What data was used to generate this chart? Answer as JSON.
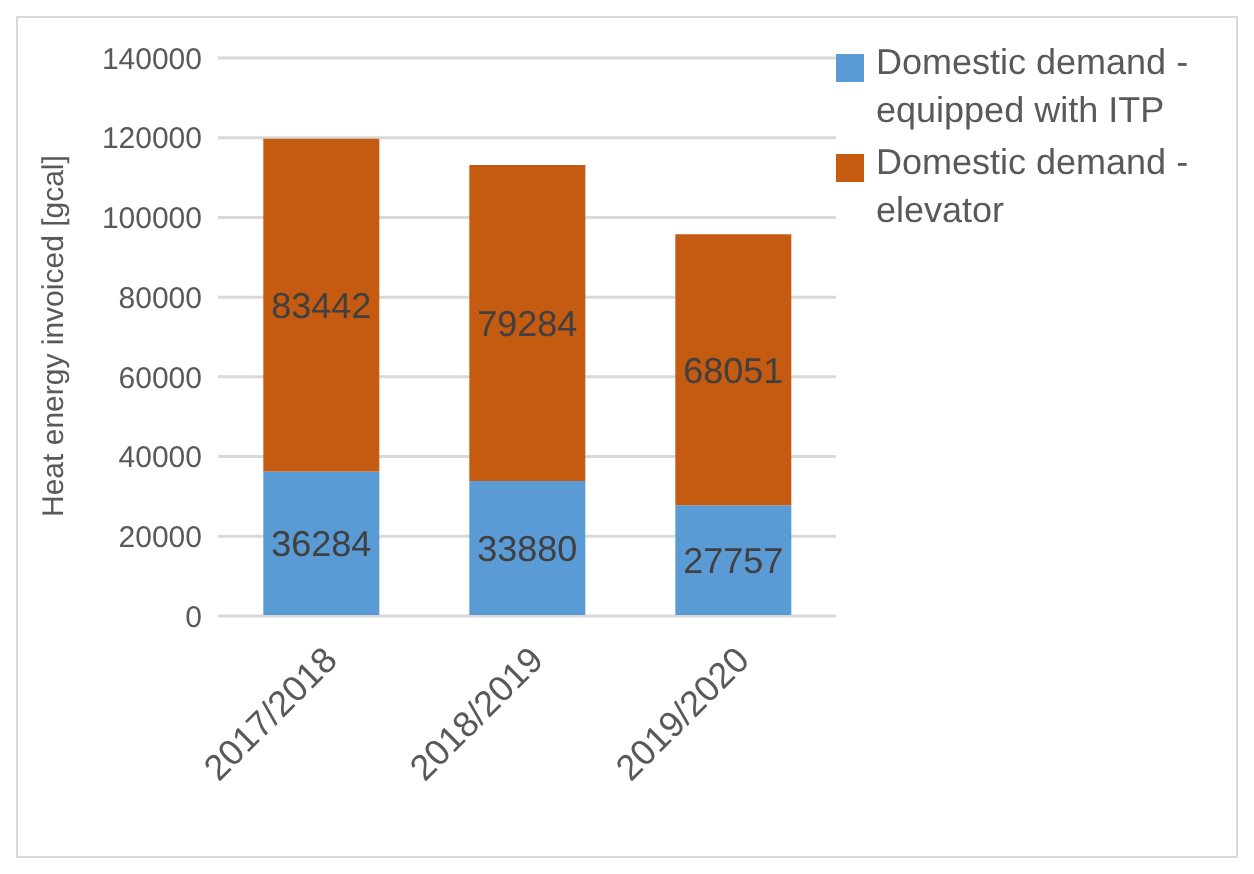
{
  "chart_data": {
    "type": "bar",
    "stacked": true,
    "ylabel": "Heat energy invoiced [gcal]",
    "categories": [
      "2017/2018",
      "2018/2019",
      "2019/2020"
    ],
    "series": [
      {
        "name": "Domestic demand - equipped with ITP",
        "color": "#5b9bd5",
        "values": [
          36284,
          33880,
          27757
        ]
      },
      {
        "name": "Domestic demand - elevator",
        "color": "#c55a11",
        "values": [
          83442,
          79284,
          68051
        ]
      }
    ],
    "ylim": [
      0,
      140000
    ],
    "yticks": [
      0,
      20000,
      40000,
      60000,
      80000,
      100000,
      120000,
      140000
    ],
    "grid": "y",
    "legend": "top right",
    "data_labels": true
  }
}
